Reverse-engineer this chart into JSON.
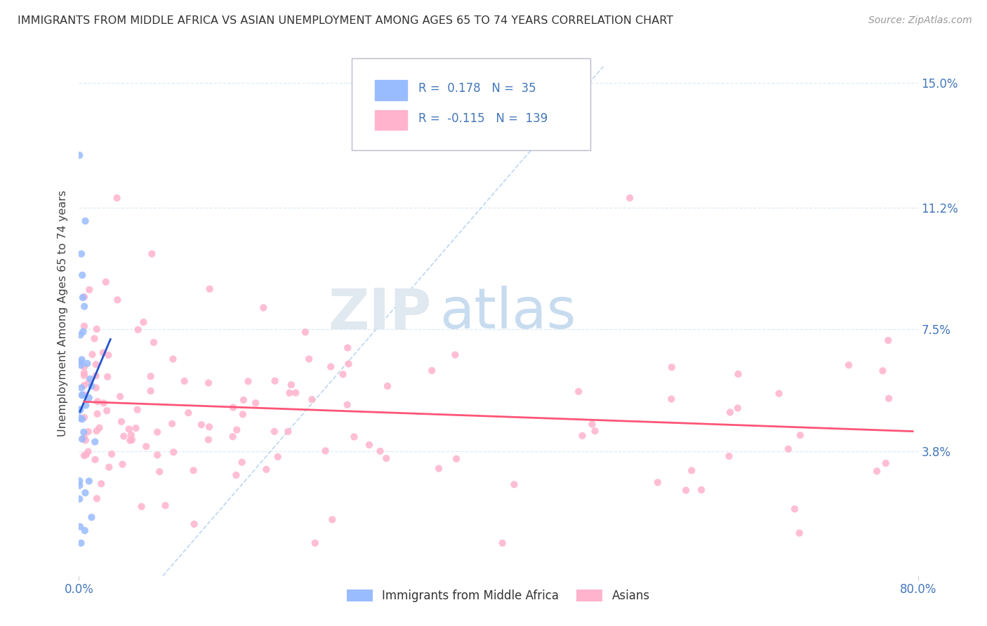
{
  "title": "IMMIGRANTS FROM MIDDLE AFRICA VS ASIAN UNEMPLOYMENT AMONG AGES 65 TO 74 YEARS CORRELATION CHART",
  "source": "Source: ZipAtlas.com",
  "ylabel": "Unemployment Among Ages 65 to 74 years",
  "xmin": 0.0,
  "xmax": 0.8,
  "ymin": 0.0,
  "ymax": 0.16,
  "yticks": [
    0.038,
    0.075,
    0.112,
    0.15
  ],
  "ytick_labels": [
    "3.8%",
    "7.5%",
    "11.2%",
    "15.0%"
  ],
  "blue_color": "#99BBFF",
  "pink_color": "#FFB3CC",
  "blue_line_color": "#2255CC",
  "pink_line_color": "#FF5577",
  "diag_color": "#AACCEE",
  "blue_R": 0.178,
  "blue_N": 35,
  "pink_R": -0.115,
  "pink_N": 139,
  "legend_label_blue": "Immigrants from Middle Africa",
  "legend_label_pink": "Asians",
  "watermark_zip": "ZIP",
  "watermark_atlas": "atlas",
  "grid_color": "#DDEBF5",
  "title_color": "#333333",
  "source_color": "#999999",
  "axis_label_color": "#4477BB",
  "blue_trend_x0": 0.001,
  "blue_trend_x1": 0.03,
  "blue_trend_y0": 0.05,
  "blue_trend_y1": 0.072,
  "pink_trend_x0": 0.005,
  "pink_trend_x1": 0.795,
  "pink_trend_y0": 0.053,
  "pink_trend_y1": 0.044
}
